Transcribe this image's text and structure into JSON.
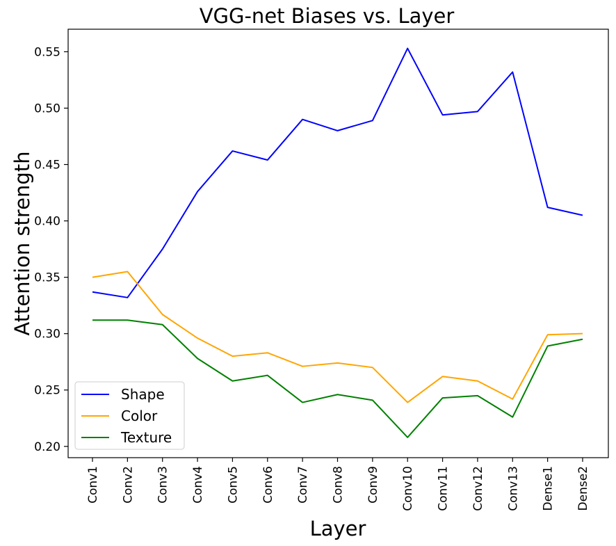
{
  "chart_data": {
    "type": "line",
    "title": "VGG-net Biases vs. Layer",
    "xlabel": "Layer",
    "ylabel": "Attention strength",
    "categories": [
      "Conv1",
      "Conv2",
      "Conv3",
      "Conv4",
      "Conv5",
      "Conv6",
      "Conv7",
      "Conv8",
      "Conv9",
      "Conv10",
      "Conv11",
      "Conv12",
      "Conv13",
      "Dense1",
      "Dense2"
    ],
    "ylim": [
      0.19,
      0.57
    ],
    "yticks": [
      "0.20",
      "0.25",
      "0.30",
      "0.35",
      "0.40",
      "0.45",
      "0.50",
      "0.55"
    ],
    "grid": false,
    "legend_position": "bottom-left",
    "series": [
      {
        "name": "Shape",
        "color": "#0000ff",
        "values": [
          0.337,
          0.332,
          0.375,
          0.426,
          0.462,
          0.454,
          0.49,
          0.48,
          0.489,
          0.553,
          0.494,
          0.497,
          0.532,
          0.412,
          0.405
        ]
      },
      {
        "name": "Color",
        "color": "#ffa500",
        "values": [
          0.35,
          0.355,
          0.317,
          0.296,
          0.28,
          0.283,
          0.271,
          0.274,
          0.27,
          0.239,
          0.262,
          0.258,
          0.242,
          0.299,
          0.3
        ]
      },
      {
        "name": "Texture",
        "color": "#008000",
        "values": [
          0.312,
          0.312,
          0.308,
          0.278,
          0.258,
          0.263,
          0.239,
          0.246,
          0.241,
          0.208,
          0.243,
          0.245,
          0.226,
          0.289,
          0.295
        ]
      }
    ]
  }
}
